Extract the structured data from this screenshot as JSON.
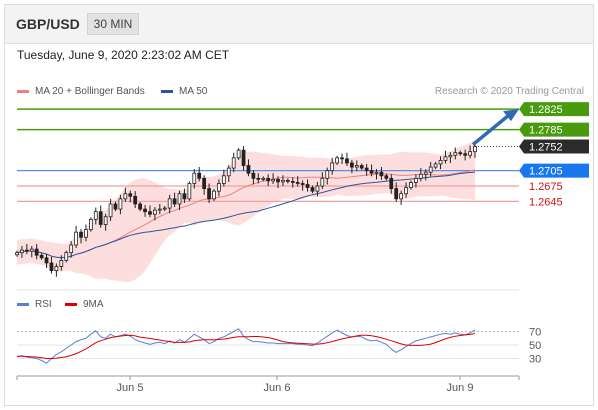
{
  "header": {
    "pair": "GBP/USD",
    "timeframe": "30 MIN"
  },
  "timestamp": "Tuesday, June 9, 2020 2:23:02 AM CET",
  "credit": "Research © 2020 Trading Central",
  "legend": {
    "ma20": {
      "label": "MA 20 + Bollinger Bands",
      "color": "#f08080"
    },
    "ma50": {
      "label": "MA 50",
      "color": "#2f5597"
    },
    "rsi": {
      "label": "RSI",
      "color": "#5b7fd6"
    },
    "ma9": {
      "label": "9MA",
      "color": "#dd0000"
    }
  },
  "chart_data": [
    {
      "type": "candlestick",
      "x_ticks": [
        "Jun 5",
        "Jun 6",
        "Jun 9"
      ],
      "ylim": [
        1.248,
        1.2835
      ],
      "levels": [
        {
          "value": 1.2825,
          "label": "1.2825",
          "line_color": "#4a9a0f",
          "kind": "target"
        },
        {
          "value": 1.2785,
          "label": "1.2785",
          "line_color": "#4a9a0f",
          "kind": "target"
        },
        {
          "value": 1.2752,
          "label": "1.2752",
          "line_color": "#333333",
          "kind": "last"
        },
        {
          "value": 1.2705,
          "label": "1.2705",
          "line_color": "#5b8ee6",
          "kind": "pivot"
        },
        {
          "value": 1.2675,
          "label": "1.2675",
          "line_color": "#f2a0a0",
          "kind": "support"
        },
        {
          "value": 1.2645,
          "label": "1.2645",
          "line_color": "#f2a0a0",
          "kind": "support"
        }
      ],
      "close": [
        1.2545,
        1.255,
        1.2548,
        1.2552,
        1.254,
        1.2535,
        1.2525,
        1.251,
        1.2518,
        1.253,
        1.2545,
        1.256,
        1.2585,
        1.2575,
        1.259,
        1.261,
        1.2625,
        1.26,
        1.2615,
        1.264,
        1.263,
        1.265,
        1.266,
        1.2655,
        1.264,
        1.263,
        1.2625,
        1.262,
        1.2628,
        1.263,
        1.2632,
        1.265,
        1.264,
        1.266,
        1.265,
        1.268,
        1.27,
        1.269,
        1.267,
        1.265,
        1.2665,
        1.268,
        1.2695,
        1.271,
        1.273,
        1.2745,
        1.2715,
        1.27,
        1.269,
        1.2688,
        1.269,
        1.2685,
        1.2688,
        1.2683,
        1.2686,
        1.2684,
        1.2682,
        1.268,
        1.2678,
        1.2672,
        1.2665,
        1.2675,
        1.269,
        1.2705,
        1.272,
        1.273,
        1.2728,
        1.272,
        1.2712,
        1.2715,
        1.271,
        1.2705,
        1.27,
        1.2702,
        1.2695,
        1.269,
        1.267,
        1.265,
        1.266,
        1.2672,
        1.2682,
        1.269,
        1.2698,
        1.2702,
        1.2712,
        1.2718,
        1.2725,
        1.2732,
        1.2735,
        1.274,
        1.2738,
        1.2735,
        1.2742,
        1.2752
      ],
      "rsi": [
        33,
        34,
        32,
        31,
        30,
        27,
        23,
        30,
        36,
        40,
        45,
        50,
        55,
        58,
        60,
        66,
        71,
        62,
        60,
        66,
        62,
        64,
        66,
        63,
        58,
        55,
        53,
        51,
        53,
        54,
        52,
        56,
        53,
        58,
        54,
        60,
        66,
        62,
        58,
        52,
        55,
        60,
        62,
        66,
        70,
        74,
        63,
        58,
        55,
        55,
        54,
        53,
        53,
        52,
        52,
        52,
        52,
        51,
        51,
        50,
        49,
        53,
        58,
        63,
        68,
        72,
        68,
        64,
        62,
        63,
        62,
        58,
        56,
        57,
        54,
        51,
        44,
        39,
        43,
        48,
        52,
        56,
        58,
        60,
        62,
        64,
        66,
        67,
        66,
        68,
        66,
        65,
        68,
        72
      ],
      "rsi_levels": [
        70,
        50,
        30
      ]
    }
  ]
}
